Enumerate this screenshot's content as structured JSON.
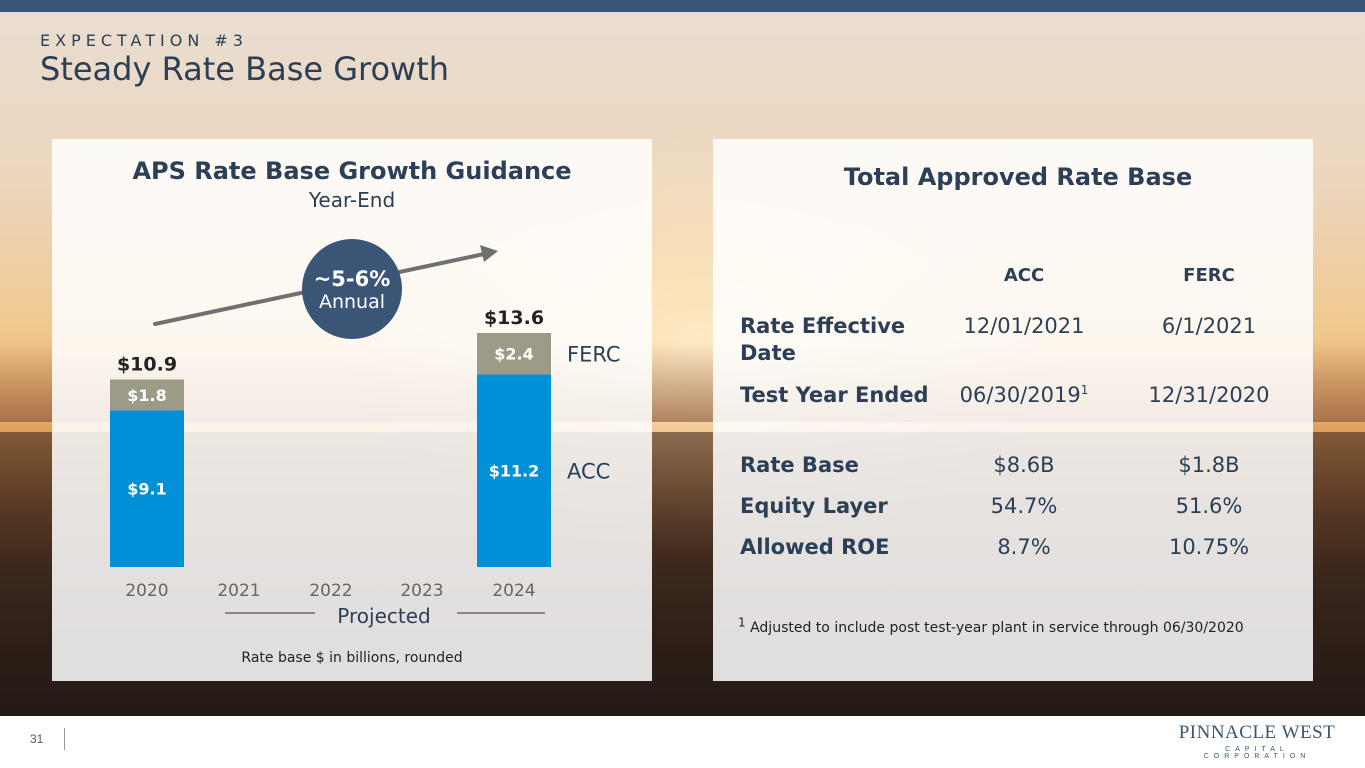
{
  "slide": {
    "eyebrow": "EXPECTATION #3",
    "title": "Steady Rate Base Growth",
    "page_number": "31"
  },
  "logo": {
    "main": "PINNACLE WEST",
    "sub": "CAPITAL CORPORATION",
    "color": "#3a5576"
  },
  "chart_data": {
    "type": "bar",
    "stacked": true,
    "title": "APS Rate Base Growth Guidance",
    "subtitle": "Year-End",
    "categories": [
      "2020",
      "2021",
      "2022",
      "2023",
      "2024"
    ],
    "series": [
      {
        "name": "ACC",
        "color": "#0090d8",
        "values": [
          9.1,
          null,
          null,
          null,
          11.2
        ],
        "labels": [
          "$9.1",
          "",
          "",
          "",
          "$11.2"
        ]
      },
      {
        "name": "FERC",
        "color": "#9b9b88",
        "values": [
          1.8,
          null,
          null,
          null,
          2.4
        ],
        "labels": [
          "$1.8",
          "",
          "",
          "",
          "$2.4"
        ]
      }
    ],
    "totals": [
      10.9,
      null,
      null,
      null,
      13.6
    ],
    "total_labels": [
      "$10.9",
      "",
      "",
      "",
      "$13.6"
    ],
    "ylim": [
      0,
      13.6
    ],
    "grid": false,
    "projected_label": "Projected",
    "projected_range": [
      "2021",
      "2024"
    ],
    "growth": {
      "value": "~5-6%",
      "label": "Annual"
    },
    "footnote": "Rate base $ in billions, rounded",
    "legend_placement": "right"
  },
  "table": {
    "title": "Total Approved Rate Base",
    "columns": [
      "ACC",
      "FERC"
    ],
    "rows": [
      {
        "label": "Rate Effective Date",
        "acc": "12/01/2021",
        "ferc": "6/1/2021"
      },
      {
        "label": "Test Year Ended",
        "acc": "06/30/2019",
        "acc_sup": "1",
        "ferc": "12/31/2020"
      },
      {
        "label": "Rate Base",
        "acc": "$8.6B",
        "ferc": "$1.8B"
      },
      {
        "label": "Equity Layer",
        "acc": "54.7%",
        "ferc": "51.6%"
      },
      {
        "label": "Allowed ROE",
        "acc": "8.7%",
        "ferc": "10.75%"
      }
    ],
    "footnote_marker": "1",
    "footnote": "Adjusted to include post test-year plant in service through 06/30/2020"
  },
  "colors": {
    "navy": "#2b3f57",
    "badge": "#3a5576",
    "acc_bar": "#0090d8",
    "ferc_bar": "#9b9b88",
    "arrow": "#707070"
  }
}
